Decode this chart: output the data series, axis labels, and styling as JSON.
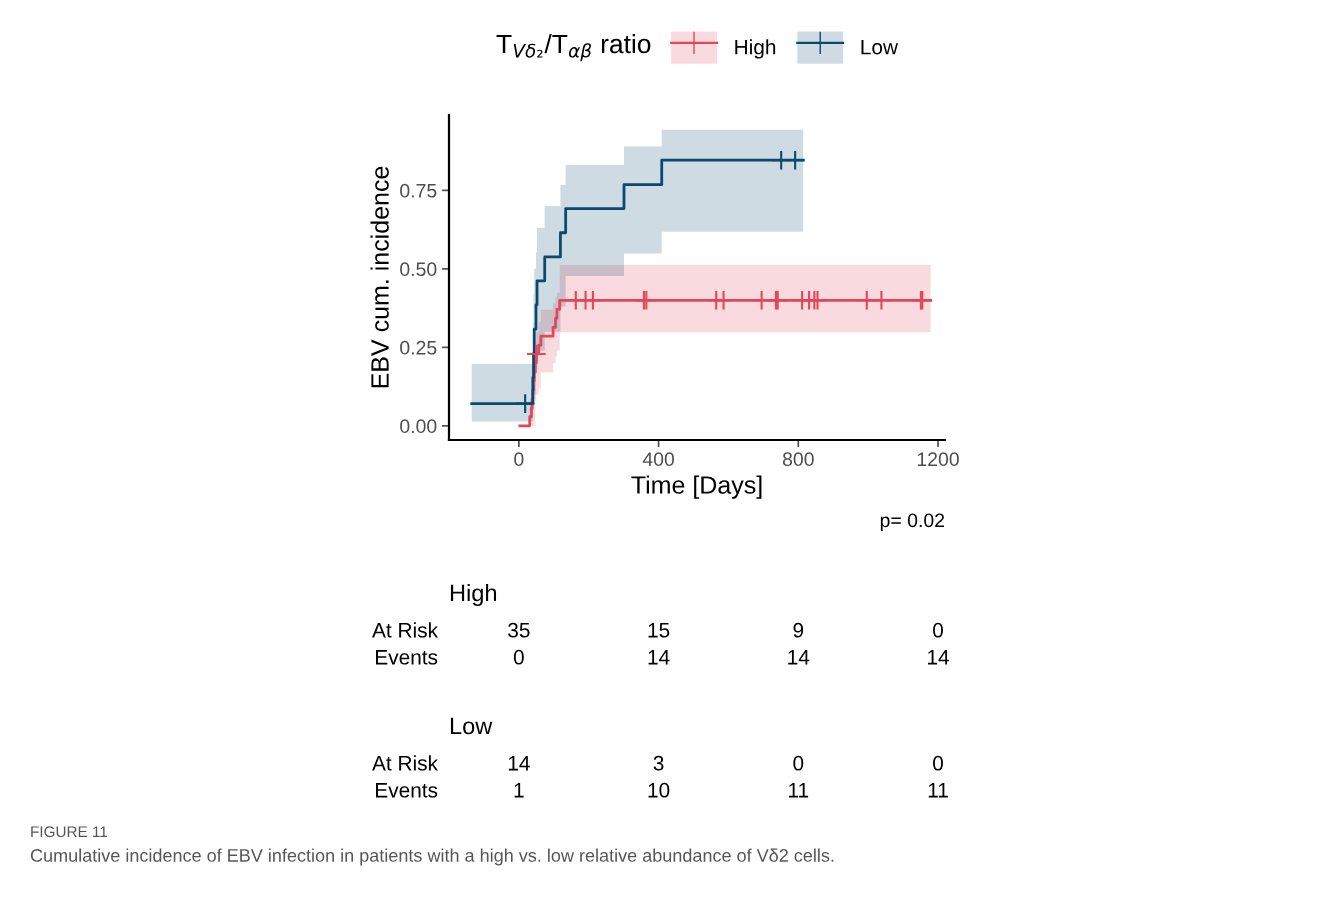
{
  "chart_data": {
    "type": "step",
    "xlabel": "Time [Days]",
    "ylabel": "EBV cum. incidence",
    "legend_title": "T$_{Vδ₂}$/T$_{αβ}$ ratio",
    "xlim": [
      -200,
      1220
    ],
    "ylim": [
      -0.045,
      0.99
    ],
    "xticks": [
      0,
      400,
      800,
      1200
    ],
    "yticks": [
      {
        "value": 0,
        "label": "0.00"
      },
      {
        "value": 0.25,
        "label": "0.25"
      },
      {
        "value": 0.5,
        "label": "0.50"
      },
      {
        "value": 0.75,
        "label": "0.75"
      }
    ],
    "grid": false,
    "legend": "top",
    "marker": "cross",
    "line_style": "solid",
    "series": [
      {
        "name": "High",
        "marker": "none",
        "color": "#e0475b",
        "x": [
          3,
          31,
          36,
          38,
          40,
          42,
          44,
          47,
          50,
          57,
          63,
          98,
          105,
          109,
          117,
          1179
        ],
        "values": [
          0,
          0.029,
          0.057,
          0.086,
          0.114,
          0.143,
          0.171,
          0.2,
          0.229,
          0.257,
          0.286,
          0.314,
          0.343,
          0.371,
          0.4,
          0.4
        ],
        "lower": [
          0,
          0,
          0,
          0,
          0,
          0,
          0,
          0.08,
          0.1,
          0.12,
          0.17,
          0.2,
          0.22,
          0.24,
          0.298,
          0.298
        ],
        "upper": [
          0,
          0.08,
          0.11,
          0.14,
          0.17,
          0.2,
          0.23,
          0.27,
          0.3,
          0.33,
          0.37,
          0.39,
          0.41,
          0.424,
          0.512,
          0.512
        ]
      },
      {
        "name": "Low",
        "marker": "none",
        "color": "#0b4a6e",
        "x": [
          -135,
          40,
          42,
          44,
          49,
          52,
          74,
          119,
          134,
          301,
          409,
          814
        ],
        "values": [
          0.071,
          0.154,
          0.231,
          0.308,
          0.385,
          0.462,
          0.538,
          0.615,
          0.692,
          0.768,
          0.846,
          0.846
        ],
        "lower": [
          0.014,
          0.05,
          0.08,
          0.1,
          0.17,
          0.24,
          0.3,
          0.38,
          0.477,
          0.549,
          0.618,
          0.618
        ],
        "upper": [
          0.197,
          0.33,
          0.42,
          0.5,
          0.553,
          0.631,
          0.7,
          0.767,
          0.831,
          0.89,
          0.943,
          0.943
        ]
      },
      {
        "type": "scatter",
        "color": "#e0475b",
        "x": [
          50,
          163,
          191,
          212,
          358,
          365,
          565,
          586,
          695,
          736,
          741,
          811,
          831,
          846,
          855,
          996,
          1038,
          1151,
          1155
        ],
        "values": [
          0.229,
          0.4,
          0.4,
          0.4,
          0.4,
          0.4,
          0.4,
          0.4,
          0.4,
          0.4,
          0.4,
          0.4,
          0.4,
          0.4,
          0.4,
          0.4,
          0.4,
          0.4,
          0.4
        ]
      },
      {
        "type": "scatter",
        "color": "#0b4a6e",
        "x": [
          18,
          751,
          791
        ],
        "values": [
          0.071,
          0.846,
          0.846
        ]
      }
    ],
    "annotations": [
      "p= 0.02",
      "High",
      "At Risk",
      "Events",
      "35",
      "15",
      "9",
      "0",
      "0",
      "14",
      "14",
      "14",
      "Low",
      "At Risk",
      "Events",
      "14",
      "3",
      "0",
      "0",
      "1",
      "10",
      "11",
      "11",
      "FIGURE 11",
      "Cumulative incidence of EBV infection in patients with a high vs. low relative abundance of Vδ2 cells."
    ]
  }
}
